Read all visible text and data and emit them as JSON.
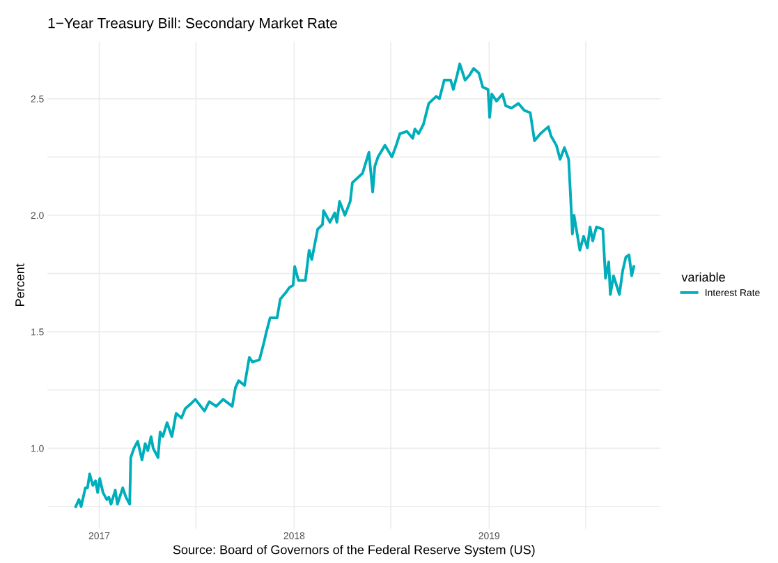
{
  "chart_data": {
    "type": "line",
    "title": "1−Year Treasury Bill: Secondary Market Rate",
    "xlabel": "Source: Board of Governors of the Federal Reserve System (US)",
    "ylabel": "Percent",
    "legend_title": "variable",
    "legend": "right",
    "grid": true,
    "line_style": "solid",
    "marker": "none",
    "xlim": [
      "2016-09-26",
      "2019-11-18"
    ],
    "ylim": [
      0.655,
      2.745
    ],
    "xticks": [
      {
        "value": "2017-01-01",
        "label": "2017"
      },
      {
        "value": "2017-07-01",
        "label": null
      },
      {
        "value": "2018-01-01",
        "label": "2018"
      },
      {
        "value": "2018-07-01",
        "label": null
      },
      {
        "value": "2019-01-01",
        "label": "2019"
      },
      {
        "value": "2019-07-01",
        "label": null
      }
    ],
    "yticks": [
      {
        "value": 0.75,
        "label": null
      },
      {
        "value": 1,
        "label": "1.0"
      },
      {
        "value": 1.25,
        "label": null
      },
      1.5,
      {
        "value": 1.75,
        "label": null
      },
      {
        "value": 2,
        "label": "2.0"
      },
      {
        "value": 2.25,
        "label": null
      },
      2.5
    ],
    "x": [
      "2016-11-18",
      "2016-11-24",
      "2016-11-28",
      "2016-12-06",
      "2016-12-10",
      "2016-12-14",
      "2016-12-20",
      "2016-12-25",
      "2016-12-29",
      "2017-01-02",
      "2017-01-08",
      "2017-01-15",
      "2017-01-19",
      "2017-01-23",
      "2017-01-31",
      "2017-02-04",
      "2017-02-14",
      "2017-02-20",
      "2017-02-27",
      "2017-03-01",
      "2017-03-07",
      "2017-03-14",
      "2017-03-22",
      "2017-03-28",
      "2017-04-02",
      "2017-04-08",
      "2017-04-12",
      "2017-04-21",
      "2017-04-25",
      "2017-04-30",
      "2017-05-08",
      "2017-05-17",
      "2017-05-25",
      "2017-06-04",
      "2017-06-11",
      "2017-06-21",
      "2017-06-30",
      "2017-07-17",
      "2017-07-26",
      "2017-08-08",
      "2017-08-21",
      "2017-09-07",
      "2017-09-13",
      "2017-09-19",
      "2017-09-30",
      "2017-10-09",
      "2017-10-15",
      "2017-10-28",
      "2017-11-05",
      "2017-11-10",
      "2017-11-17",
      "2017-11-30",
      "2017-12-06",
      "2017-12-17",
      "2017-12-23",
      "2017-12-30",
      "2018-01-02",
      "2018-01-09",
      "2018-01-22",
      "2018-01-29",
      "2018-02-03",
      "2018-02-14",
      "2018-02-23",
      "2018-02-25",
      "2018-03-09",
      "2018-03-18",
      "2018-03-22",
      "2018-03-27",
      "2018-04-06",
      "2018-04-16",
      "2018-04-20",
      "2018-05-09",
      "2018-05-21",
      "2018-05-28",
      "2018-06-01",
      "2018-06-07",
      "2018-06-20",
      "2018-07-03",
      "2018-07-11",
      "2018-07-18",
      "2018-07-31",
      "2018-08-11",
      "2018-08-15",
      "2018-08-22",
      "2018-08-31",
      "2018-09-10",
      "2018-09-24",
      "2018-09-30",
      "2018-10-09",
      "2018-10-21",
      "2018-10-26",
      "2018-11-02",
      "2018-11-07",
      "2018-11-17",
      "2018-11-25",
      "2018-12-03",
      "2018-12-13",
      "2018-12-20",
      "2018-12-30",
      "2019-01-02",
      "2019-01-06",
      "2019-01-15",
      "2019-01-26",
      "2019-02-01",
      "2019-02-12",
      "2019-02-25",
      "2019-03-08",
      "2019-03-19",
      "2019-03-27",
      "2019-04-07",
      "2019-04-22",
      "2019-04-27",
      "2019-05-07",
      "2019-05-14",
      "2019-05-22",
      "2019-05-30",
      "2019-06-03",
      "2019-06-06",
      "2019-06-09",
      "2019-06-20",
      "2019-06-27",
      "2019-07-04",
      "2019-07-09",
      "2019-07-14",
      "2019-07-21",
      "2019-08-02",
      "2019-08-07",
      "2019-08-13",
      "2019-08-16",
      "2019-08-22",
      "2019-09-02",
      "2019-09-08",
      "2019-09-14",
      "2019-09-20",
      "2019-09-25",
      "2019-09-29"
    ],
    "series": [
      {
        "name": "Interest Rate",
        "color": "#00aebb",
        "values": [
          0.75,
          0.78,
          0.75,
          0.83,
          0.83,
          0.89,
          0.84,
          0.86,
          0.81,
          0.87,
          0.81,
          0.78,
          0.79,
          0.76,
          0.82,
          0.76,
          0.83,
          0.79,
          0.76,
          0.96,
          1.0,
          1.03,
          0.95,
          1.02,
          0.99,
          1.05,
          1.0,
          0.96,
          1.07,
          1.05,
          1.11,
          1.05,
          1.15,
          1.13,
          1.17,
          1.19,
          1.21,
          1.16,
          1.2,
          1.18,
          1.21,
          1.18,
          1.26,
          1.29,
          1.27,
          1.39,
          1.37,
          1.38,
          1.45,
          1.5,
          1.56,
          1.56,
          1.64,
          1.67,
          1.69,
          1.7,
          1.78,
          1.72,
          1.72,
          1.85,
          1.81,
          1.94,
          1.96,
          2.02,
          1.97,
          2.01,
          1.97,
          2.06,
          2.0,
          2.06,
          2.14,
          2.18,
          2.27,
          2.1,
          2.21,
          2.25,
          2.3,
          2.25,
          2.3,
          2.35,
          2.36,
          2.33,
          2.37,
          2.35,
          2.39,
          2.48,
          2.51,
          2.5,
          2.58,
          2.58,
          2.54,
          2.6,
          2.65,
          2.58,
          2.6,
          2.63,
          2.61,
          2.55,
          2.54,
          2.42,
          2.52,
          2.49,
          2.52,
          2.47,
          2.46,
          2.48,
          2.45,
          2.44,
          2.32,
          2.35,
          2.38,
          2.34,
          2.3,
          2.24,
          2.29,
          2.24,
          2.06,
          1.92,
          2.0,
          1.85,
          1.91,
          1.86,
          1.95,
          1.89,
          1.95,
          1.94,
          1.73,
          1.8,
          1.66,
          1.74,
          1.66,
          1.76,
          1.82,
          1.83,
          1.74,
          1.78
        ]
      }
    ]
  }
}
